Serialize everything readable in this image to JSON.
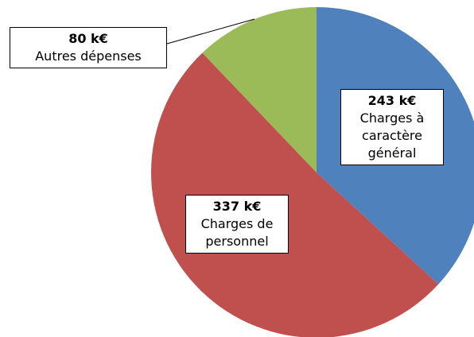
{
  "chart_data": {
    "type": "pie",
    "categories": [
      "Charges à caractère général",
      "Charges de personnel",
      "Autres dépenses"
    ],
    "values": [
      243,
      337,
      80
    ],
    "value_labels": [
      "243 k€",
      "337 k€",
      "80 k€"
    ],
    "colors": [
      "#4f81bd",
      "#c0504d",
      "#9bbb59"
    ]
  }
}
